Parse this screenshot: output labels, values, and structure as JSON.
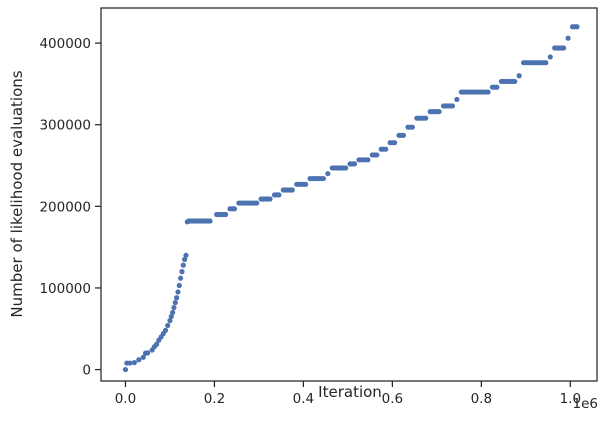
{
  "chart_data": {
    "type": "scatter",
    "xlabel": "Iteration",
    "ylabel": "Number of likelihood evaluations",
    "x_offset_label": "1e6",
    "xlim": [
      -0.055,
      1.06
    ],
    "ylim": [
      -14000,
      443000
    ],
    "x_ticks": [
      0.0,
      0.2,
      0.4,
      0.6,
      0.8,
      1.0
    ],
    "x_tick_labels": [
      "0.0",
      "0.2",
      "0.4",
      "0.6",
      "0.8",
      "1.0"
    ],
    "y_ticks": [
      0,
      100000,
      200000,
      300000,
      400000
    ],
    "y_tick_labels": [
      "0",
      "100000",
      "200000",
      "300000",
      "400000"
    ],
    "marker_color": "#4c72b0",
    "grid": false,
    "series": [
      {
        "x": [
          0.0,
          0.003,
          0.01,
          0.02,
          0.03,
          0.04,
          0.045,
          0.05,
          0.06,
          0.065,
          0.07,
          0.075,
          0.08,
          0.085,
          0.09,
          0.095,
          0.1,
          0.103,
          0.106,
          0.109,
          0.112,
          0.115,
          0.118,
          0.121,
          0.124,
          0.127,
          0.13,
          0.133,
          0.136,
          0.139,
          0.142,
          0.145,
          0.16,
          0.175,
          0.19,
          0.205,
          0.215,
          0.225,
          0.235,
          0.245,
          0.255,
          0.265,
          0.275,
          0.285,
          0.295,
          0.305,
          0.315,
          0.325,
          0.335,
          0.345,
          0.355,
          0.365,
          0.375,
          0.385,
          0.395,
          0.405,
          0.415,
          0.425,
          0.435,
          0.445,
          0.455,
          0.465,
          0.475,
          0.485,
          0.495,
          0.505,
          0.515,
          0.525,
          0.535,
          0.545,
          0.555,
          0.565,
          0.575,
          0.585,
          0.595,
          0.605,
          0.615,
          0.625,
          0.635,
          0.645,
          0.655,
          0.665,
          0.675,
          0.685,
          0.695,
          0.705,
          0.715,
          0.725,
          0.735,
          0.745,
          0.755,
          0.765,
          0.775,
          0.785,
          0.795,
          0.805,
          0.815,
          0.825,
          0.835,
          0.845,
          0.855,
          0.865,
          0.875,
          0.885,
          0.895,
          0.905,
          0.915,
          0.925,
          0.935,
          0.945,
          0.955,
          0.965,
          0.975,
          0.985,
          0.995,
          1.005,
          1.015
        ],
        "y": [
          0,
          8000,
          8000,
          8500,
          12000,
          15000,
          20000,
          20500,
          24000,
          28000,
          31000,
          36000,
          40000,
          44000,
          48000,
          54000,
          60000,
          65000,
          70000,
          76000,
          82000,
          88000,
          95000,
          103000,
          112000,
          120000,
          128000,
          135000,
          140000,
          181000,
          182000,
          182000,
          182000,
          182000,
          182000,
          190000,
          190000,
          190000,
          197000,
          197000,
          204000,
          204000,
          204000,
          204000,
          204000,
          209000,
          209000,
          209000,
          214000,
          214000,
          220000,
          220000,
          220000,
          227000,
          227000,
          227000,
          234000,
          234000,
          234000,
          234000,
          240000,
          247000,
          247000,
          247000,
          247000,
          252000,
          252000,
          257000,
          257000,
          257000,
          263000,
          263000,
          270000,
          270000,
          278000,
          278000,
          287000,
          287000,
          297000,
          297000,
          308000,
          308000,
          308000,
          316000,
          316000,
          316000,
          323000,
          323000,
          323000,
          331000,
          340000,
          340000,
          340000,
          340000,
          340000,
          340000,
          340000,
          346000,
          346000,
          353000,
          353000,
          353000,
          353000,
          360000,
          376000,
          376000,
          376000,
          376000,
          376000,
          376000,
          383000,
          394000,
          394000,
          394000,
          406000,
          420000,
          420000
        ]
      }
    ]
  }
}
